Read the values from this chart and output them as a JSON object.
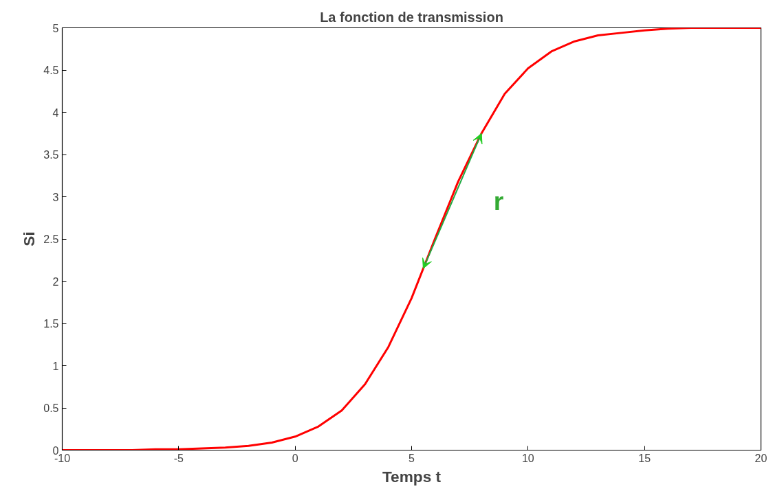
{
  "chart_data": {
    "type": "line",
    "title": "La fonction de transmission",
    "xlabel": "Temps t",
    "ylabel": "Si",
    "x": [
      -10,
      -9,
      -8,
      -7,
      -6,
      -5,
      -4,
      -3,
      -2,
      -1,
      0,
      1,
      2,
      3,
      4,
      5,
      6,
      7,
      8,
      9,
      10,
      11,
      12,
      13,
      14,
      15,
      16,
      17,
      18,
      19,
      20
    ],
    "series": [
      {
        "color": "#ff0000",
        "values": [
          0.0,
          0.0,
          0.0,
          0.0,
          0.01,
          0.01,
          0.02,
          0.03,
          0.05,
          0.09,
          0.16,
          0.28,
          0.47,
          0.78,
          1.22,
          1.8,
          2.5,
          3.18,
          3.75,
          4.22,
          4.52,
          4.72,
          4.84,
          4.91,
          4.94,
          4.97,
          4.99,
          5.0,
          5.0,
          5.0,
          5.0
        ]
      }
    ],
    "annotations": [
      "r"
    ],
    "xlim": [
      -10,
      20
    ],
    "ylim": [
      0,
      5
    ],
    "xticks": [
      -10,
      -5,
      0,
      5,
      10,
      15,
      20
    ],
    "yticks": [
      0,
      0.5,
      1,
      1.5,
      2,
      2.5,
      3,
      3.5,
      4,
      4.5,
      5
    ],
    "grid": false,
    "marker": "none",
    "line_style": "solid"
  }
}
